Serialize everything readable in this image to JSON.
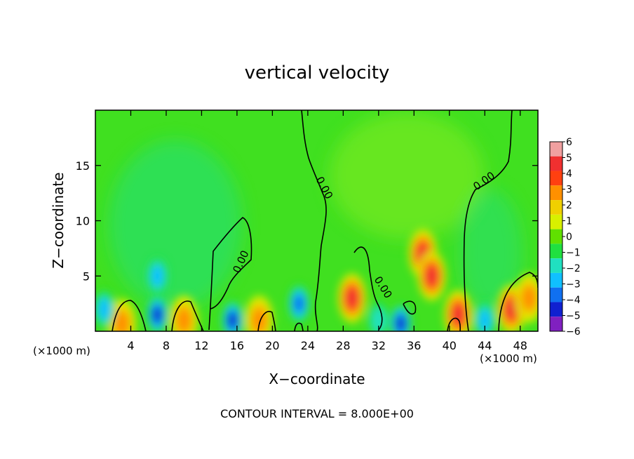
{
  "chart_data": {
    "type": "heatmap",
    "title": "vertical velocity",
    "xlabel": "X−coordinate",
    "ylabel": "Z−coordinate",
    "x_unit_left": "(×1000 m)",
    "x_unit_right": "(×1000 m)",
    "footer": "CONTOUR INTERVAL = 8.000E+00",
    "xlim": [
      0,
      50
    ],
    "ylim": [
      0,
      20
    ],
    "x_ticks": [
      4,
      8,
      12,
      16,
      20,
      24,
      28,
      32,
      36,
      40,
      44,
      48
    ],
    "y_ticks": [
      5,
      10,
      15
    ],
    "contour_label": "0.00",
    "colorbar": {
      "levels": [
        6,
        5,
        4,
        3,
        2,
        1,
        0,
        -1,
        -2,
        -3,
        -4,
        -5,
        -6
      ],
      "labels": [
        "6",
        "5",
        "4",
        "3",
        "2",
        "1",
        "0",
        "−1",
        "−2",
        "−3",
        "−4",
        "−5",
        "−6"
      ],
      "colors": [
        "#f0a0a0",
        "#f03030",
        "#ff4010",
        "#ff9000",
        "#f0d000",
        "#d8f000",
        "#60e000",
        "#20e040",
        "#20e0c0",
        "#10c0ff",
        "#1070f0",
        "#1020d0",
        "#8020c0"
      ]
    },
    "background_color": "#40e020",
    "features": [
      {
        "kind": "updraft",
        "x": 37,
        "z": 7,
        "value": 4.5
      },
      {
        "kind": "updraft",
        "x": 38,
        "z": 5,
        "value": 5
      },
      {
        "kind": "updraft",
        "x": 29,
        "z": 3,
        "value": 5
      },
      {
        "kind": "updraft",
        "x": 41,
        "z": 1.5,
        "value": 5
      },
      {
        "kind": "updraft",
        "x": 47,
        "z": 2,
        "value": 5
      },
      {
        "kind": "updraft",
        "x": 49,
        "z": 3,
        "value": 3
      },
      {
        "kind": "updraft",
        "x": 3,
        "z": 0.7,
        "value": 2.5
      },
      {
        "kind": "updraft",
        "x": 10,
        "z": 1,
        "value": 2.5
      },
      {
        "kind": "updraft",
        "x": 18.5,
        "z": 1,
        "value": 2.5
      },
      {
        "kind": "downdraft",
        "x": 7,
        "z": 5,
        "value": -2.5
      },
      {
        "kind": "downdraft",
        "x": 7,
        "z": 1.5,
        "value": -5
      },
      {
        "kind": "downdraft",
        "x": 15.5,
        "z": 1,
        "value": -4.5
      },
      {
        "kind": "downdraft",
        "x": 23,
        "z": 2.5,
        "value": -3.5
      },
      {
        "kind": "downdraft",
        "x": 34.5,
        "z": 0.7,
        "value": -5
      },
      {
        "kind": "downdraft",
        "x": 1,
        "z": 2,
        "value": -3
      },
      {
        "kind": "downdraft",
        "x": 44,
        "z": 1,
        "value": -3
      },
      {
        "kind": "downdraft",
        "x": 32,
        "z": 1,
        "value": -2
      }
    ]
  }
}
